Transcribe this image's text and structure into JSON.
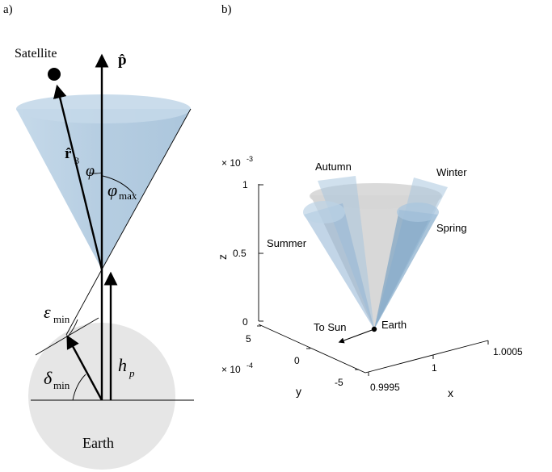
{
  "panel_a": {
    "label": "a)",
    "satellite": "Satellite",
    "p_hat": "p̂",
    "r3_main": "r̂",
    "r3_sub": "3",
    "phi": "φ",
    "phi_max_main": "φ",
    "phi_max_sub": "max",
    "eps_main": "ε",
    "eps_sub": "min",
    "delta_main": "δ",
    "delta_sub": "min",
    "hp_main": "h",
    "hp_sub": "p",
    "earth": "Earth"
  },
  "panel_b": {
    "label": "b)",
    "z_exp_base": "× 10",
    "z_exp_pow": "-3",
    "y_exp_base": "× 10",
    "y_exp_pow": "-4",
    "z_axis_label": "z",
    "y_axis_label": "y",
    "x_axis_label": "x",
    "z_ticks": [
      "1",
      "0.5",
      "0"
    ],
    "y_ticks": [
      "5",
      "0",
      "-5"
    ],
    "x_ticks": [
      "0.9995",
      "1",
      "1.0005"
    ],
    "seasons": {
      "autumn": "Autumn",
      "winter": "Winter",
      "summer": "Summer",
      "spring": "Spring"
    },
    "to_sun": "To Sun",
    "earth": "Earth"
  },
  "colors": {
    "cone_blue": "#a9c6de",
    "earth_gray": "#e6e6e6",
    "cone_gray": "#c8c8c8"
  }
}
